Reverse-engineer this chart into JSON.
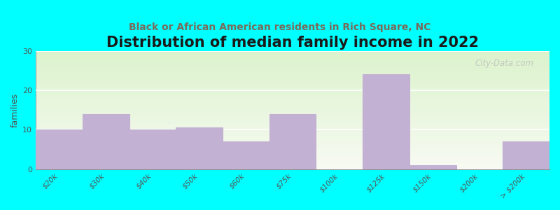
{
  "title": "Distribution of median family income in 2022",
  "subtitle": "Black or African American residents in Rich Square, NC",
  "bar_edges": [
    0,
    1,
    2,
    3,
    4,
    5,
    6,
    7,
    8,
    9,
    10,
    11
  ],
  "values": [
    10,
    14,
    10,
    10.5,
    7,
    14,
    0,
    24,
    1,
    0,
    7
  ],
  "tick_labels": [
    "$20k",
    "$30k",
    "$40k",
    "$50k",
    "$60k",
    "$75k",
    "$100k",
    "$125k",
    "$150k",
    "$200k",
    "> $200k"
  ],
  "bar_color": "#c3b1d4",
  "bar_edge_color": "white",
  "background_color": "#00ffff",
  "plot_bg_green": [
    0.86,
    0.95,
    0.8
  ],
  "plot_bg_white": [
    0.97,
    0.98,
    0.95
  ],
  "ylabel": "families",
  "ylim": [
    0,
    30
  ],
  "yticks": [
    0,
    10,
    20,
    30
  ],
  "title_fontsize": 15,
  "subtitle_fontsize": 10,
  "subtitle_color": "#7a6a5a",
  "watermark": "City-Data.com",
  "watermark_color": "#bbbbbb"
}
